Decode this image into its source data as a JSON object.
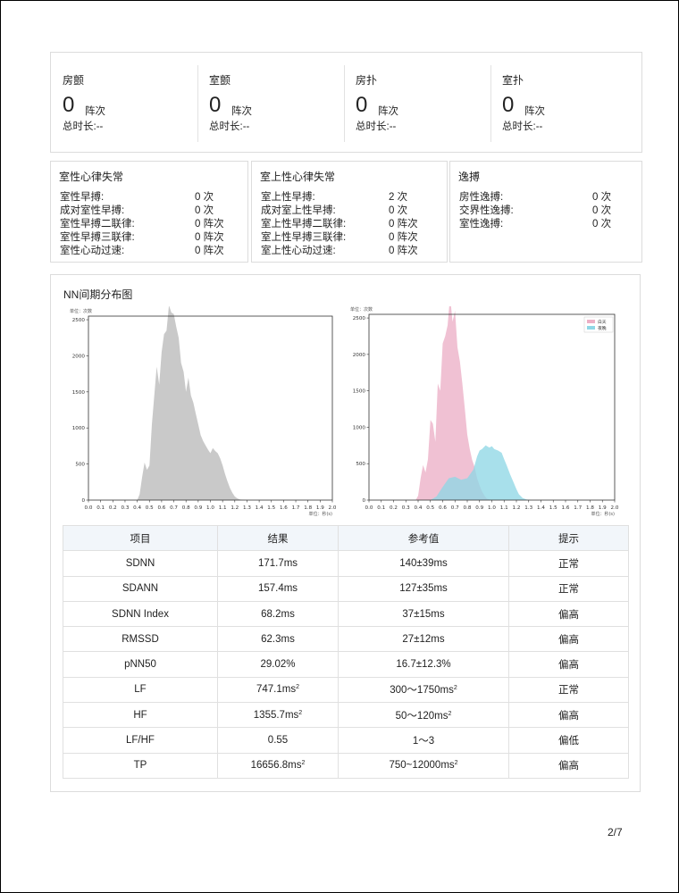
{
  "summary": [
    {
      "title": "房颤",
      "value": "0",
      "unit": "阵次",
      "duration": "总时长:--"
    },
    {
      "title": "室颤",
      "value": "0",
      "unit": "阵次",
      "duration": "总时长:--"
    },
    {
      "title": "房扑",
      "value": "0",
      "unit": "阵次",
      "duration": "总时长:--"
    },
    {
      "title": "室扑",
      "value": "0",
      "unit": "阵次",
      "duration": "总时长:--"
    }
  ],
  "ventricular": {
    "title": "室性心律失常",
    "rows": [
      {
        "label": "室性早搏:",
        "value": "0 次"
      },
      {
        "label": "成对室性早搏:",
        "value": "0 次"
      },
      {
        "label": "室性早搏二联律:",
        "value": "0 阵次"
      },
      {
        "label": "室性早搏三联律:",
        "value": "0 阵次"
      },
      {
        "label": "室性心动过速:",
        "value": "0 阵次"
      }
    ]
  },
  "supraventricular": {
    "title": "室上性心律失常",
    "rows": [
      {
        "label": "室上性早搏:",
        "value": "2 次"
      },
      {
        "label": "成对室上性早搏:",
        "value": "0 次"
      },
      {
        "label": "室上性早搏二联律:",
        "value": "0 阵次"
      },
      {
        "label": "室上性早搏三联律:",
        "value": "0 阵次"
      },
      {
        "label": "室上性心动过速:",
        "value": "0 阵次"
      }
    ]
  },
  "escape": {
    "title": "逸搏",
    "rows": [
      {
        "label": "房性逸搏:",
        "value": "0 次"
      },
      {
        "label": "交界性逸搏:",
        "value": "0 次"
      },
      {
        "label": "室性逸搏:",
        "value": "0 次"
      }
    ]
  },
  "nn_section": {
    "title": "NN间期分布图"
  },
  "colors": {
    "all": "#c9c9c9",
    "day": "#ecb0c6",
    "night": "#8fd7e6"
  },
  "chart_data": [
    {
      "type": "area",
      "ylabel": "单位：次数",
      "xlabel": "单位：秒(s)",
      "xlim": [
        0.0,
        2.0
      ],
      "ylim": [
        0,
        2550
      ],
      "xticks": [
        "0.0",
        "0.1",
        "0.2",
        "0.3",
        "0.4",
        "0.5",
        "0.6",
        "0.7",
        "0.8",
        "0.9",
        "1.0",
        "1.1",
        "1.2",
        "1.3",
        "1.4",
        "1.5",
        "1.6",
        "1.7",
        "1.8",
        "1.9",
        "2.0"
      ],
      "yticks": [
        "0",
        "500",
        "1000",
        "1500",
        "2000",
        "2500"
      ],
      "series": [
        {
          "color": "#c9c9c9",
          "x": [
            0.4,
            0.42,
            0.44,
            0.46,
            0.48,
            0.5,
            0.52,
            0.54,
            0.56,
            0.58,
            0.6,
            0.62,
            0.64,
            0.66,
            0.68,
            0.7,
            0.72,
            0.74,
            0.76,
            0.78,
            0.8,
            0.82,
            0.84,
            0.86,
            0.88,
            0.9,
            0.92,
            0.94,
            0.96,
            0.98,
            1.0,
            1.02,
            1.04,
            1.06,
            1.08,
            1.1,
            1.12,
            1.14,
            1.16,
            1.18,
            1.2,
            1.22,
            1.24,
            1.26,
            1.3
          ],
          "y": [
            0,
            80,
            320,
            520,
            420,
            480,
            1050,
            1450,
            1850,
            1600,
            2050,
            2300,
            2350,
            2700,
            2600,
            2580,
            2400,
            2250,
            1900,
            1780,
            1500,
            1700,
            1450,
            1350,
            1200,
            1050,
            900,
            820,
            760,
            700,
            650,
            720,
            680,
            650,
            580,
            480,
            360,
            260,
            170,
            100,
            50,
            25,
            10,
            5,
            0
          ]
        }
      ]
    },
    {
      "type": "area",
      "ylabel": "单位：次数",
      "xlabel": "单位：秒(s)",
      "xlim": [
        0.0,
        2.0
      ],
      "ylim": [
        0,
        2550
      ],
      "xticks": [
        "0.0",
        "0.1",
        "0.2",
        "0.3",
        "0.4",
        "0.5",
        "0.6",
        "0.7",
        "0.8",
        "0.9",
        "1.0",
        "1.1",
        "1.2",
        "1.3",
        "1.4",
        "1.5",
        "1.6",
        "1.7",
        "1.8",
        "1.9",
        "2.0"
      ],
      "yticks": [
        "0",
        "500",
        "1000",
        "1500",
        "2000",
        "2500"
      ],
      "legend": "top-right",
      "series": [
        {
          "name": "白天",
          "color": "#ecb0c6",
          "x": [
            0.38,
            0.4,
            0.42,
            0.44,
            0.46,
            0.48,
            0.5,
            0.52,
            0.54,
            0.56,
            0.58,
            0.6,
            0.62,
            0.64,
            0.66,
            0.68,
            0.7,
            0.72,
            0.74,
            0.76,
            0.78,
            0.8,
            0.82,
            0.84,
            0.86,
            0.88,
            0.9,
            0.92,
            0.94,
            0.96,
            1.0
          ],
          "y": [
            0,
            60,
            300,
            480,
            380,
            560,
            1100,
            1050,
            800,
            1600,
            1500,
            2150,
            2250,
            2400,
            2800,
            2450,
            2600,
            2100,
            1900,
            1600,
            1250,
            900,
            700,
            550,
            450,
            300,
            200,
            120,
            60,
            20,
            0
          ]
        },
        {
          "name": "夜晚",
          "color": "#8fd7e6",
          "x": [
            0.5,
            0.55,
            0.6,
            0.65,
            0.7,
            0.75,
            0.8,
            0.85,
            0.88,
            0.9,
            0.92,
            0.95,
            0.98,
            1.0,
            1.02,
            1.05,
            1.08,
            1.1,
            1.12,
            1.15,
            1.18,
            1.2,
            1.22,
            1.25,
            1.28,
            1.32
          ],
          "y": [
            0,
            50,
            180,
            300,
            320,
            280,
            300,
            420,
            600,
            680,
            700,
            750,
            720,
            740,
            700,
            680,
            650,
            560,
            480,
            350,
            230,
            150,
            80,
            30,
            10,
            0
          ]
        }
      ]
    }
  ],
  "table": {
    "headers": [
      "项目",
      "结果",
      "参考值",
      "提示"
    ],
    "rows": [
      {
        "item": "SDNN",
        "result": "171.7ms",
        "ref": "140±39ms",
        "hint": "正常",
        "unit_sq": false
      },
      {
        "item": "SDANN",
        "result": "157.4ms",
        "ref": "127±35ms",
        "hint": "正常",
        "unit_sq": false
      },
      {
        "item": "SDNN Index",
        "result": "68.2ms",
        "ref": "37±15ms",
        "hint": "偏高",
        "unit_sq": false
      },
      {
        "item": "RMSSD",
        "result": "62.3ms",
        "ref": "27±12ms",
        "hint": "偏高",
        "unit_sq": false
      },
      {
        "item": "pNN50",
        "result": "29.02%",
        "ref": "16.7±12.3%",
        "hint": "偏高",
        "unit_sq": false
      },
      {
        "item": "LF",
        "result": "747.1ms",
        "ref": "300～1750ms",
        "hint": "正常",
        "unit_sq": true
      },
      {
        "item": "HF",
        "result": "1355.7ms",
        "ref": "50～120ms",
        "hint": "偏高",
        "unit_sq": true
      },
      {
        "item": "LF/HF",
        "result": "0.55",
        "ref": "1～3",
        "hint": "偏低",
        "unit_sq": false
      },
      {
        "item": "TP",
        "result": "16656.8ms",
        "ref": "750~12000ms",
        "hint": "偏高",
        "unit_sq": true
      }
    ]
  },
  "page": "2/7"
}
